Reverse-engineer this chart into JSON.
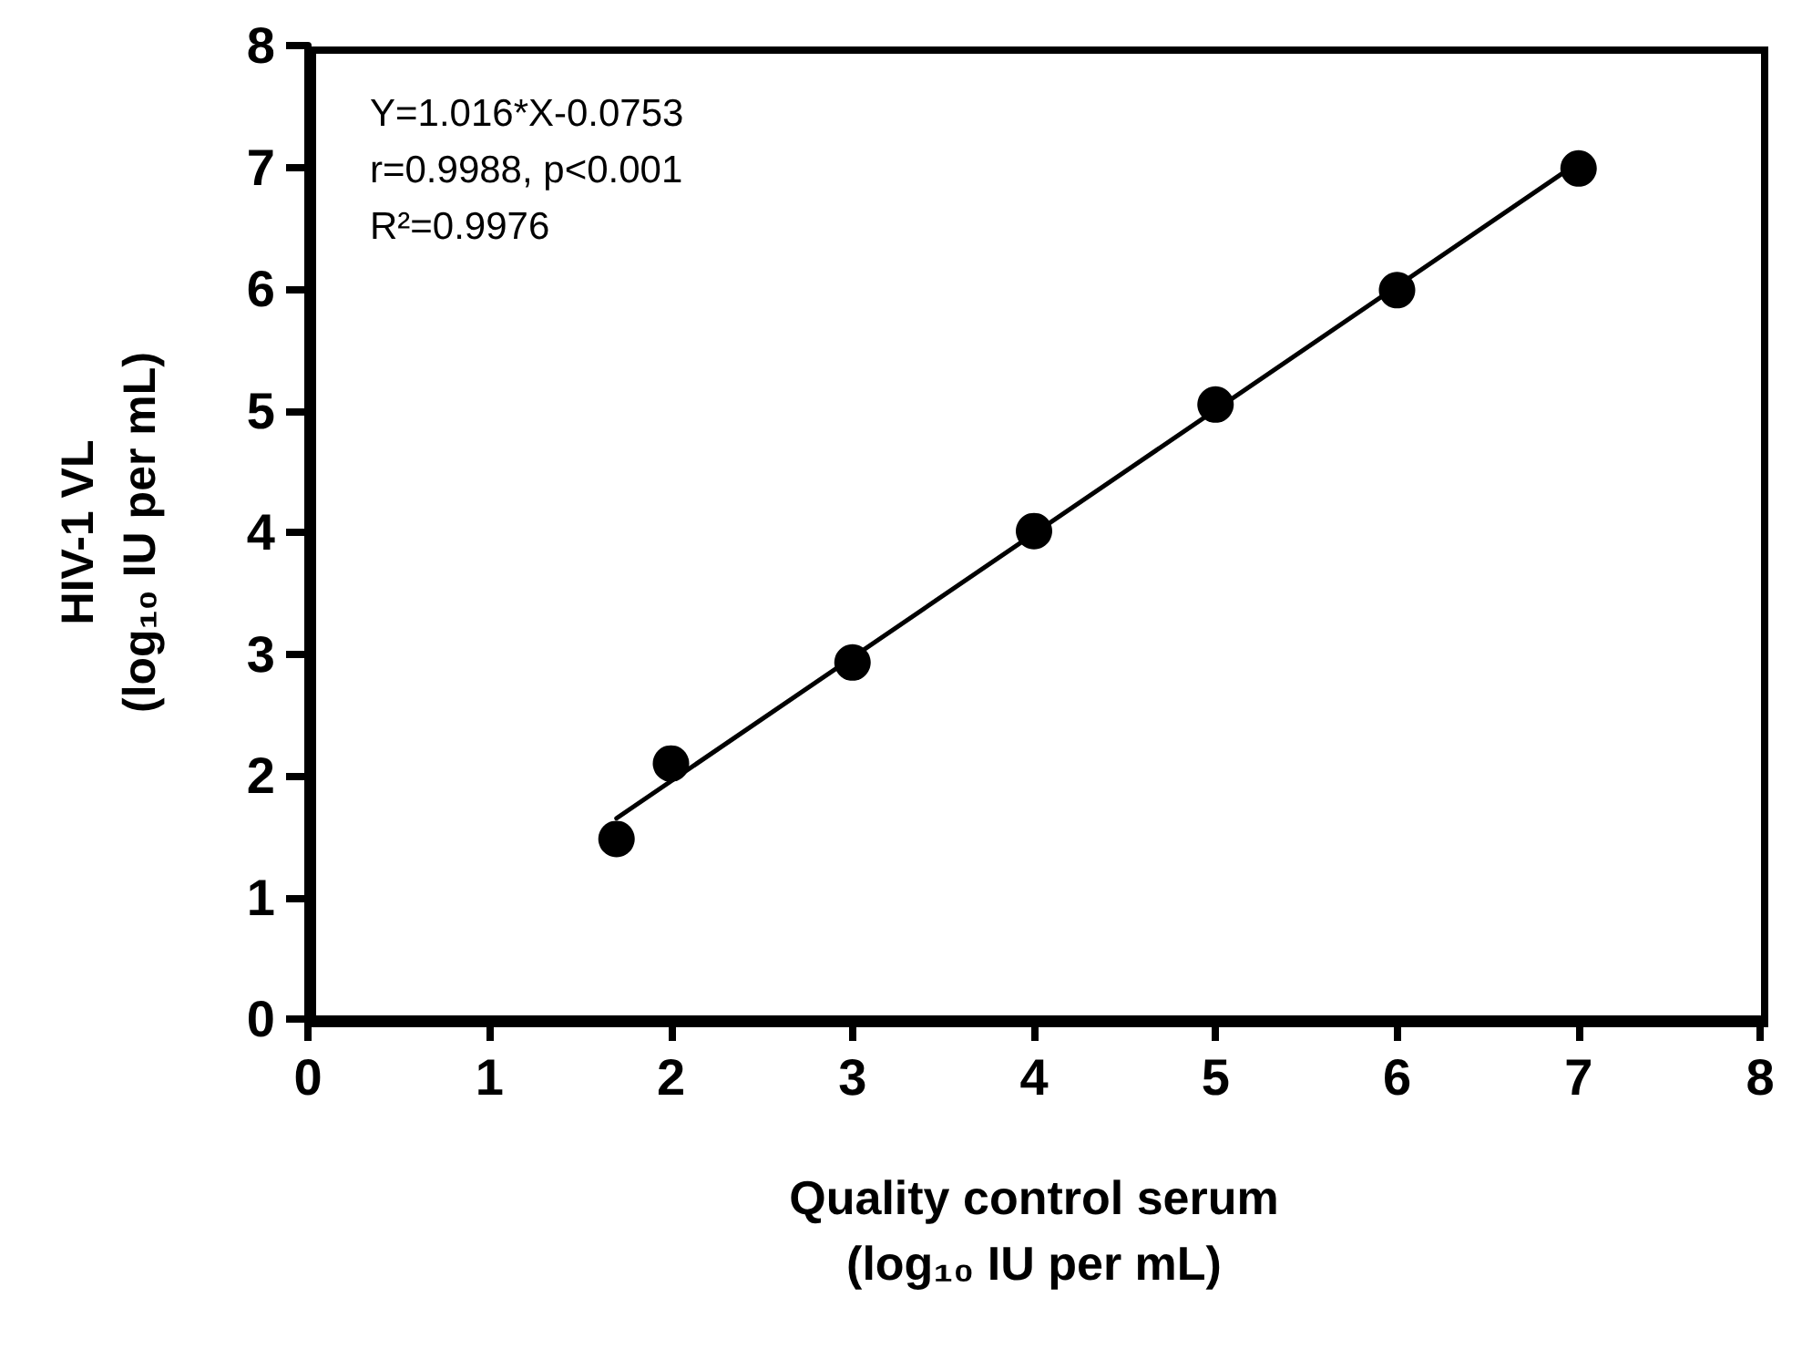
{
  "chart_data": {
    "type": "scatter",
    "xlabel": "Quality control serum\n(log₁₀ IU per mL)",
    "ylabel": "HIV-1 VL\n(log₁₀ IU per mL)",
    "annotations": [
      "Y=1.016*X-0.0753",
      "r=0.9988, p<0.001",
      "R²=0.9976"
    ],
    "series": [
      {
        "color": "#000000",
        "x": [
          1.7,
          2,
          3,
          4,
          5,
          6,
          7
        ],
        "values": [
          1.48,
          2.1,
          2.93,
          4.01,
          5.05,
          5.99,
          6.99
        ],
        "marker": "circle"
      },
      {
        "type": "line",
        "color": "#000000",
        "x": [
          1.7,
          7
        ],
        "values": [
          1.65,
          7.04
        ],
        "marker": "none",
        "line_style": "solid"
      }
    ],
    "xlim": [
      0,
      8
    ],
    "xticks": [
      0,
      1,
      2,
      3,
      4,
      5,
      6,
      7,
      8
    ],
    "ylim": [
      0,
      8
    ],
    "yticks": [
      0,
      1,
      2,
      3,
      4,
      5,
      6,
      7,
      8
    ],
    "grid": false
  }
}
